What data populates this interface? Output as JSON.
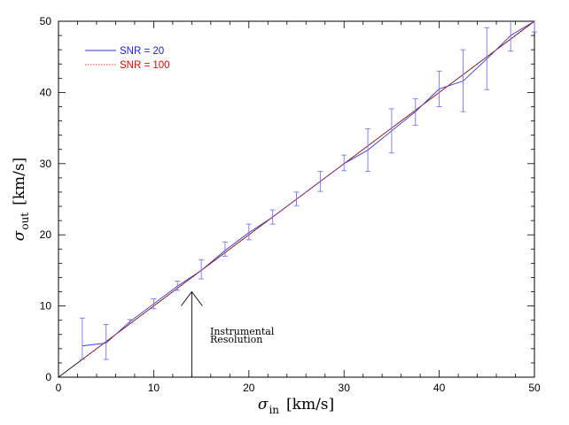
{
  "chart_data": {
    "type": "line",
    "xlabel": {
      "symbol": "σ",
      "sub": "in",
      "unit": "[km/s]"
    },
    "ylabel": {
      "symbol": "σ",
      "sub": "out",
      "unit": "[km/s]"
    },
    "xlim": [
      0,
      50
    ],
    "ylim": [
      0,
      50
    ],
    "xticks": [
      0,
      10,
      20,
      30,
      40,
      50
    ],
    "yticks": [
      0,
      10,
      20,
      30,
      40,
      50
    ],
    "grid": false,
    "legend_position": "top-left",
    "reference_line": {
      "x": [
        0,
        50
      ],
      "y": [
        0,
        50
      ],
      "color": "#000000"
    },
    "series": [
      {
        "name": "SNR = 20",
        "color": "#3333cc",
        "style": "solid",
        "x": [
          2.5,
          5,
          7.5,
          10,
          12.5,
          15,
          17.5,
          20,
          22.5,
          25,
          27.5,
          30,
          32.5,
          35,
          37.5,
          40,
          42.5,
          45,
          47.5,
          50
        ],
        "y": [
          4.4,
          4.8,
          7.8,
          10.3,
          12.8,
          15.0,
          17.8,
          20.3,
          22.5,
          25.0,
          27.5,
          30.0,
          31.9,
          34.6,
          37.3,
          40.5,
          41.6,
          44.7,
          48.0,
          50.0
        ],
        "yerr_lo": [
          2.5,
          2.5,
          7.6,
          9.6,
          12.2,
          13.8,
          17.0,
          19.3,
          21.5,
          24.1,
          26.1,
          29.0,
          28.9,
          31.5,
          35.4,
          38.0,
          37.3,
          40.4,
          45.8,
          48.5
        ],
        "yerr_hi": [
          8.3,
          7.4,
          8.1,
          11.0,
          13.5,
          16.5,
          19.0,
          21.5,
          23.5,
          26.0,
          28.9,
          31.2,
          34.9,
          37.7,
          39.1,
          43.0,
          46.0,
          49.1,
          50.0,
          50.0
        ]
      },
      {
        "name": "SNR = 100",
        "color": "#ff3333",
        "style": "dotted",
        "x": [
          2.5,
          5,
          7.5,
          10,
          12.5,
          15,
          17.5,
          20,
          22.5,
          25,
          27.5,
          30,
          32.5,
          35,
          37.5,
          40,
          42.5,
          45,
          47.5,
          50
        ],
        "y": [
          2.5,
          5.0,
          7.5,
          10.0,
          12.5,
          15.0,
          17.5,
          20.0,
          22.5,
          25.0,
          27.5,
          30.0,
          32.5,
          35.0,
          37.5,
          40.0,
          42.5,
          45.0,
          47.5,
          50.0
        ]
      }
    ],
    "annotation": {
      "lines": [
        "Instrumental",
        "Resolution"
      ],
      "arrow_x": 14.0,
      "arrow_y_from": 0,
      "arrow_y_to": 12
    }
  }
}
